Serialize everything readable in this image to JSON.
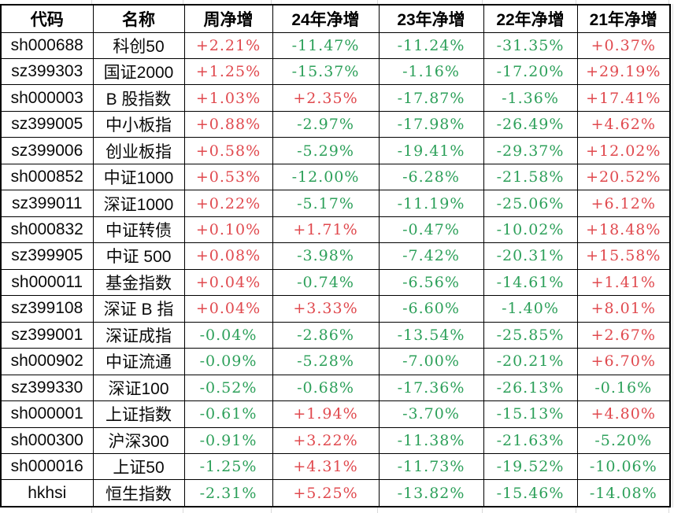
{
  "colors": {
    "positive_red": "#e0494e",
    "negative_green": "#2da05a",
    "border_black": "#000000",
    "gridline_gray": "#d9d9d9"
  },
  "table": {
    "columns": [
      {
        "key": "code",
        "label": "代码"
      },
      {
        "key": "name",
        "label": "名称"
      },
      {
        "key": "week",
        "label": "周净增"
      },
      {
        "key": "y24",
        "label": "24年净增"
      },
      {
        "key": "y23",
        "label": "23年净增"
      },
      {
        "key": "y22",
        "label": "22年净增"
      },
      {
        "key": "y21",
        "label": "21年净增"
      }
    ],
    "rows": [
      {
        "code": "sh000688",
        "name": "科创50",
        "week": "+2.21%",
        "y24": "-11.47%",
        "y23": "-11.24%",
        "y22": "-31.35%",
        "y21": "+0.37%"
      },
      {
        "code": "sz399303",
        "name": "国证2000",
        "week": "+1.25%",
        "y24": "-15.37%",
        "y23": "-1.16%",
        "y22": "-17.20%",
        "y21": "+29.19%"
      },
      {
        "code": "sh000003",
        "name": "B 股指数",
        "week": "+1.03%",
        "y24": "+2.35%",
        "y23": "-17.87%",
        "y22": "-1.36%",
        "y21": "+17.41%"
      },
      {
        "code": "sz399005",
        "name": "中小板指",
        "week": "+0.88%",
        "y24": "-2.97%",
        "y23": "-17.98%",
        "y22": "-26.49%",
        "y21": "+4.62%"
      },
      {
        "code": "sz399006",
        "name": "创业板指",
        "week": "+0.58%",
        "y24": "-5.29%",
        "y23": "-19.41%",
        "y22": "-29.37%",
        "y21": "+12.02%"
      },
      {
        "code": "sh000852",
        "name": "中证1000",
        "week": "+0.53%",
        "y24": "-12.00%",
        "y23": "-6.28%",
        "y22": "-21.58%",
        "y21": "+20.52%"
      },
      {
        "code": "sz399011",
        "name": "深证1000",
        "week": "+0.22%",
        "y24": "-5.17%",
        "y23": "-11.19%",
        "y22": "-25.06%",
        "y21": "+6.12%"
      },
      {
        "code": "sh000832",
        "name": "中证转债",
        "week": "+0.10%",
        "y24": "+1.71%",
        "y23": "-0.47%",
        "y22": "-10.02%",
        "y21": "+18.48%"
      },
      {
        "code": "sz399905",
        "name": "中证 500",
        "week": "+0.08%",
        "y24": "-3.98%",
        "y23": "-7.42%",
        "y22": "-20.31%",
        "y21": "+15.58%"
      },
      {
        "code": "sh000011",
        "name": "基金指数",
        "week": "+0.04%",
        "y24": "-0.74%",
        "y23": "-6.56%",
        "y22": "-14.61%",
        "y21": "+1.41%"
      },
      {
        "code": "sz399108",
        "name": "深证 B 指",
        "week": "+0.04%",
        "y24": "+3.33%",
        "y23": "-6.60%",
        "y22": "-1.40%",
        "y21": "+8.01%"
      },
      {
        "code": "sz399001",
        "name": "深证成指",
        "week": "-0.04%",
        "y24": "-2.86%",
        "y23": "-13.54%",
        "y22": "-25.85%",
        "y21": "+2.67%"
      },
      {
        "code": "sh000902",
        "name": "中证流通",
        "week": "-0.09%",
        "y24": "-5.28%",
        "y23": "-7.00%",
        "y22": "-20.21%",
        "y21": "+6.70%"
      },
      {
        "code": "sz399330",
        "name": "深证100",
        "week": "-0.52%",
        "y24": "-0.68%",
        "y23": "-17.36%",
        "y22": "-26.13%",
        "y21": "-0.16%"
      },
      {
        "code": "sh000001",
        "name": "上证指数",
        "week": "-0.61%",
        "y24": "+1.94%",
        "y23": "-3.70%",
        "y22": "-15.13%",
        "y21": "+4.80%"
      },
      {
        "code": "sh000300",
        "name": "沪深300",
        "week": "-0.91%",
        "y24": "+3.22%",
        "y23": "-11.38%",
        "y22": "-21.63%",
        "y21": "-5.20%"
      },
      {
        "code": "sh000016",
        "name": "上证50",
        "week": "-1.25%",
        "y24": "+4.31%",
        "y23": "-11.73%",
        "y22": "-19.52%",
        "y21": "-10.06%"
      },
      {
        "code": "hkhsi",
        "name": "恒生指数",
        "week": "-2.31%",
        "y24": "+5.25%",
        "y23": "-13.82%",
        "y22": "-15.46%",
        "y21": "-14.08%"
      }
    ]
  }
}
